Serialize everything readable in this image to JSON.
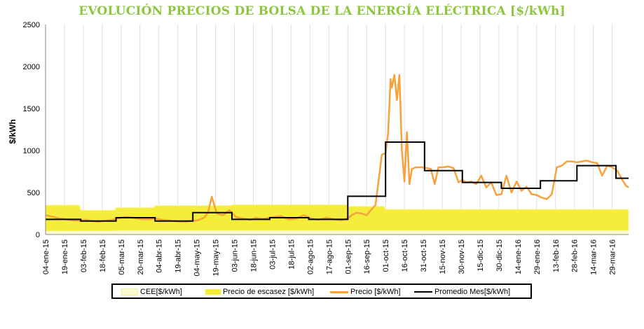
{
  "chart_data": {
    "type": "line",
    "title": "EVOLUCIÓN PRECIOS DE BOLSA DE LA ENERGÍA ELÉCTRICA [$/kWh]",
    "ylabel": "$/kWh",
    "xlabel": "",
    "ylim": [
      0,
      2500
    ],
    "yticks": [
      0,
      500,
      1000,
      1500,
      2000,
      2500
    ],
    "xlim": [
      "2015-01-04",
      "2016-04-11"
    ],
    "xtick_labels": [
      "04-ene-15",
      "19-ene-15",
      "03-feb-15",
      "18-feb-15",
      "05-mar-15",
      "20-mar-15",
      "04-abr-15",
      "19-abr-15",
      "04-may-15",
      "19-may-15",
      "03-jun-15",
      "18-jun-15",
      "03-jul-15",
      "18-jul-15",
      "02-ago-15",
      "17-ago-15",
      "01-sep-15",
      "16-sep-15",
      "01-oct-15",
      "16-oct-15",
      "31-oct-15",
      "15-nov-15",
      "30-nov-15",
      "15-dic-15",
      "30-dic-15",
      "14-ene-16",
      "29-ene-16",
      "13-feb-16",
      "28-feb-16",
      "14-mar-16",
      "29-mar-16"
    ],
    "grid": {
      "vertical": true,
      "horizontal": false
    },
    "legend_position": "bottom",
    "colors": {
      "cee": "#fffbd0",
      "escasez": "#f5ed3c",
      "precio": "#f7a23a",
      "promedio": "#000000",
      "title": "#8dc63f"
    },
    "series": [
      {
        "name": "CEE[$/kWh]",
        "kind": "band",
        "x": [
          "2015-01-04",
          "2015-01-31",
          "2015-02-01",
          "2015-02-28",
          "2015-03-01",
          "2015-03-31",
          "2015-04-01",
          "2015-05-31",
          "2015-06-01",
          "2015-08-31",
          "2015-09-01",
          "2016-04-11"
        ],
        "low": [
          40,
          40,
          42,
          42,
          43,
          43,
          44,
          44,
          45,
          45,
          45,
          45
        ]
      },
      {
        "name": "Precio de escasez [$/kWh]",
        "kind": "band",
        "x": [
          "2015-01-04",
          "2015-01-31",
          "2015-02-01",
          "2015-02-28",
          "2015-03-01",
          "2015-03-31",
          "2015-04-01",
          "2015-05-31",
          "2015-06-01",
          "2015-08-31",
          "2015-09-01",
          "2015-09-30",
          "2015-10-01",
          "2016-04-11"
        ],
        "high": [
          350,
          350,
          290,
          290,
          320,
          320,
          345,
          345,
          355,
          355,
          335,
          335,
          300,
          300
        ]
      },
      {
        "name": "Precio [$/kWh]",
        "kind": "line",
        "x": [
          "2015-01-04",
          "2015-01-10",
          "2015-01-15",
          "2015-01-20",
          "2015-01-25",
          "2015-01-31",
          "2015-02-05",
          "2015-02-10",
          "2015-02-15",
          "2015-02-20",
          "2015-02-25",
          "2015-03-02",
          "2015-03-08",
          "2015-03-14",
          "2015-03-20",
          "2015-03-26",
          "2015-04-01",
          "2015-04-07",
          "2015-04-13",
          "2015-04-19",
          "2015-04-25",
          "2015-04-30",
          "2015-05-05",
          "2015-05-10",
          "2015-05-13",
          "2015-05-16",
          "2015-05-20",
          "2015-05-25",
          "2015-05-30",
          "2015-06-04",
          "2015-06-10",
          "2015-06-16",
          "2015-06-20",
          "2015-06-25",
          "2015-07-01",
          "2015-07-05",
          "2015-07-10",
          "2015-07-16",
          "2015-07-22",
          "2015-07-28",
          "2015-08-03",
          "2015-08-09",
          "2015-08-15",
          "2015-08-21",
          "2015-08-27",
          "2015-09-01",
          "2015-09-04",
          "2015-09-08",
          "2015-09-12",
          "2015-09-16",
          "2015-09-20",
          "2015-09-23",
          "2015-09-26",
          "2015-09-28",
          "2015-10-01",
          "2015-10-03",
          "2015-10-05",
          "2015-10-06",
          "2015-10-08",
          "2015-10-10",
          "2015-10-12",
          "2015-10-14",
          "2015-10-16",
          "2015-10-18",
          "2015-10-20",
          "2015-10-22",
          "2015-10-25",
          "2015-10-30",
          "2015-11-03",
          "2015-11-06",
          "2015-11-09",
          "2015-11-12",
          "2015-11-16",
          "2015-11-20",
          "2015-11-24",
          "2015-11-28",
          "2015-12-01",
          "2015-12-04",
          "2015-12-08",
          "2015-12-12",
          "2015-12-16",
          "2015-12-20",
          "2015-12-24",
          "2015-12-28",
          "2016-01-01",
          "2016-01-05",
          "2016-01-09",
          "2016-01-13",
          "2016-01-17",
          "2016-01-21",
          "2016-01-25",
          "2016-01-29",
          "2016-02-02",
          "2016-02-06",
          "2016-02-10",
          "2016-02-14",
          "2016-02-18",
          "2016-02-22",
          "2016-02-26",
          "2016-03-01",
          "2016-03-05",
          "2016-03-09",
          "2016-03-13",
          "2016-03-17",
          "2016-03-21",
          "2016-03-25",
          "2016-03-29",
          "2016-04-02",
          "2016-04-06",
          "2016-04-09",
          "2016-04-11"
        ],
        "y": [
          230,
          210,
          190,
          180,
          170,
          165,
          175,
          160,
          150,
          165,
          170,
          190,
          210,
          200,
          185,
          180,
          190,
          175,
          165,
          155,
          150,
          160,
          170,
          200,
          260,
          450,
          250,
          230,
          290,
          210,
          190,
          175,
          200,
          185,
          200,
          210,
          220,
          180,
          190,
          230,
          190,
          175,
          200,
          180,
          170,
          190,
          230,
          260,
          250,
          230,
          300,
          350,
          700,
          950,
          970,
          1200,
          1850,
          1750,
          1900,
          1600,
          1900,
          1000,
          630,
          1220,
          600,
          780,
          800,
          800,
          790,
          780,
          600,
          800,
          800,
          810,
          790,
          620,
          650,
          620,
          630,
          600,
          700,
          560,
          620,
          470,
          480,
          700,
          500,
          630,
          520,
          570,
          480,
          470,
          440,
          420,
          480,
          800,
          820,
          870,
          870,
          860,
          870,
          880,
          860,
          850,
          700,
          820,
          800,
          760,
          650,
          580,
          560
        ]
      },
      {
        "name": "Promedio Mes[$/kWh]",
        "kind": "step",
        "x": [
          "2015-01-04",
          "2015-02-01",
          "2015-03-01",
          "2015-04-01",
          "2015-05-01",
          "2015-06-01",
          "2015-07-01",
          "2015-08-01",
          "2015-09-01",
          "2015-10-01",
          "2015-11-01",
          "2015-12-01",
          "2016-01-01",
          "2016-02-01",
          "2016-03-01",
          "2016-04-01",
          "2016-04-11"
        ],
        "y": [
          180,
          160,
          200,
          160,
          260,
          180,
          200,
          180,
          455,
          1100,
          760,
          620,
          550,
          640,
          820,
          670,
          670
        ]
      }
    ]
  }
}
